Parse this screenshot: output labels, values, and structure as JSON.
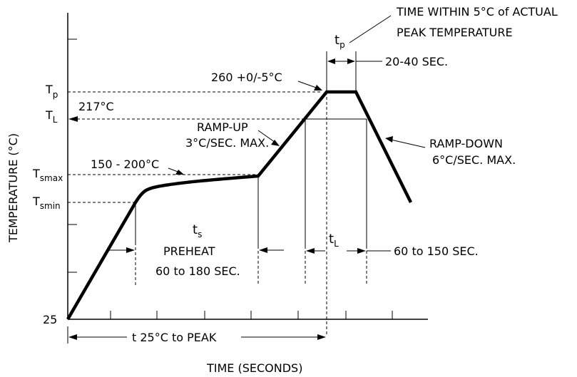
{
  "chart_data": {
    "type": "line",
    "title": "",
    "xlabel": "TIME (SECONDS)",
    "ylabel": "TEMPERATURE (°C)",
    "y_levels": {
      "start": "25",
      "tsmin": {
        "base": "T",
        "sub": "smin"
      },
      "tsmax": {
        "base": "T",
        "sub": "smax"
      },
      "tl": {
        "base": "T",
        "sub": "L"
      },
      "tp": {
        "base": "T",
        "sub": "p"
      },
      "tl_value": "217°C"
    },
    "annotations": {
      "preheat_range": "150 - 200°C",
      "ramp_up_line1": "RAMP-UP",
      "ramp_up_line2": "3°C/SEC. MAX.",
      "ramp_down_line1": "RAMP-DOWN",
      "ramp_down_line2": "6°C/SEC. MAX.",
      "peak_temp": "260 +0/-5°C",
      "peak_note_line1": "TIME WITHIN 5°C of ACTUAL",
      "peak_note_line2": "PEAK TEMPERATURE",
      "tp_label": {
        "base": "t",
        "sub": "p"
      },
      "tp_duration": "20-40 SEC.",
      "ts_label": {
        "base": "t",
        "sub": "s"
      },
      "preheat_line1": "PREHEAT",
      "preheat_line2": "60 to 180 SEC.",
      "tl_label": {
        "base": "t",
        "sub": "L"
      },
      "tl_duration": "60 to 150 SEC.",
      "t25_to_peak": "t 25°C to PEAK"
    }
  }
}
